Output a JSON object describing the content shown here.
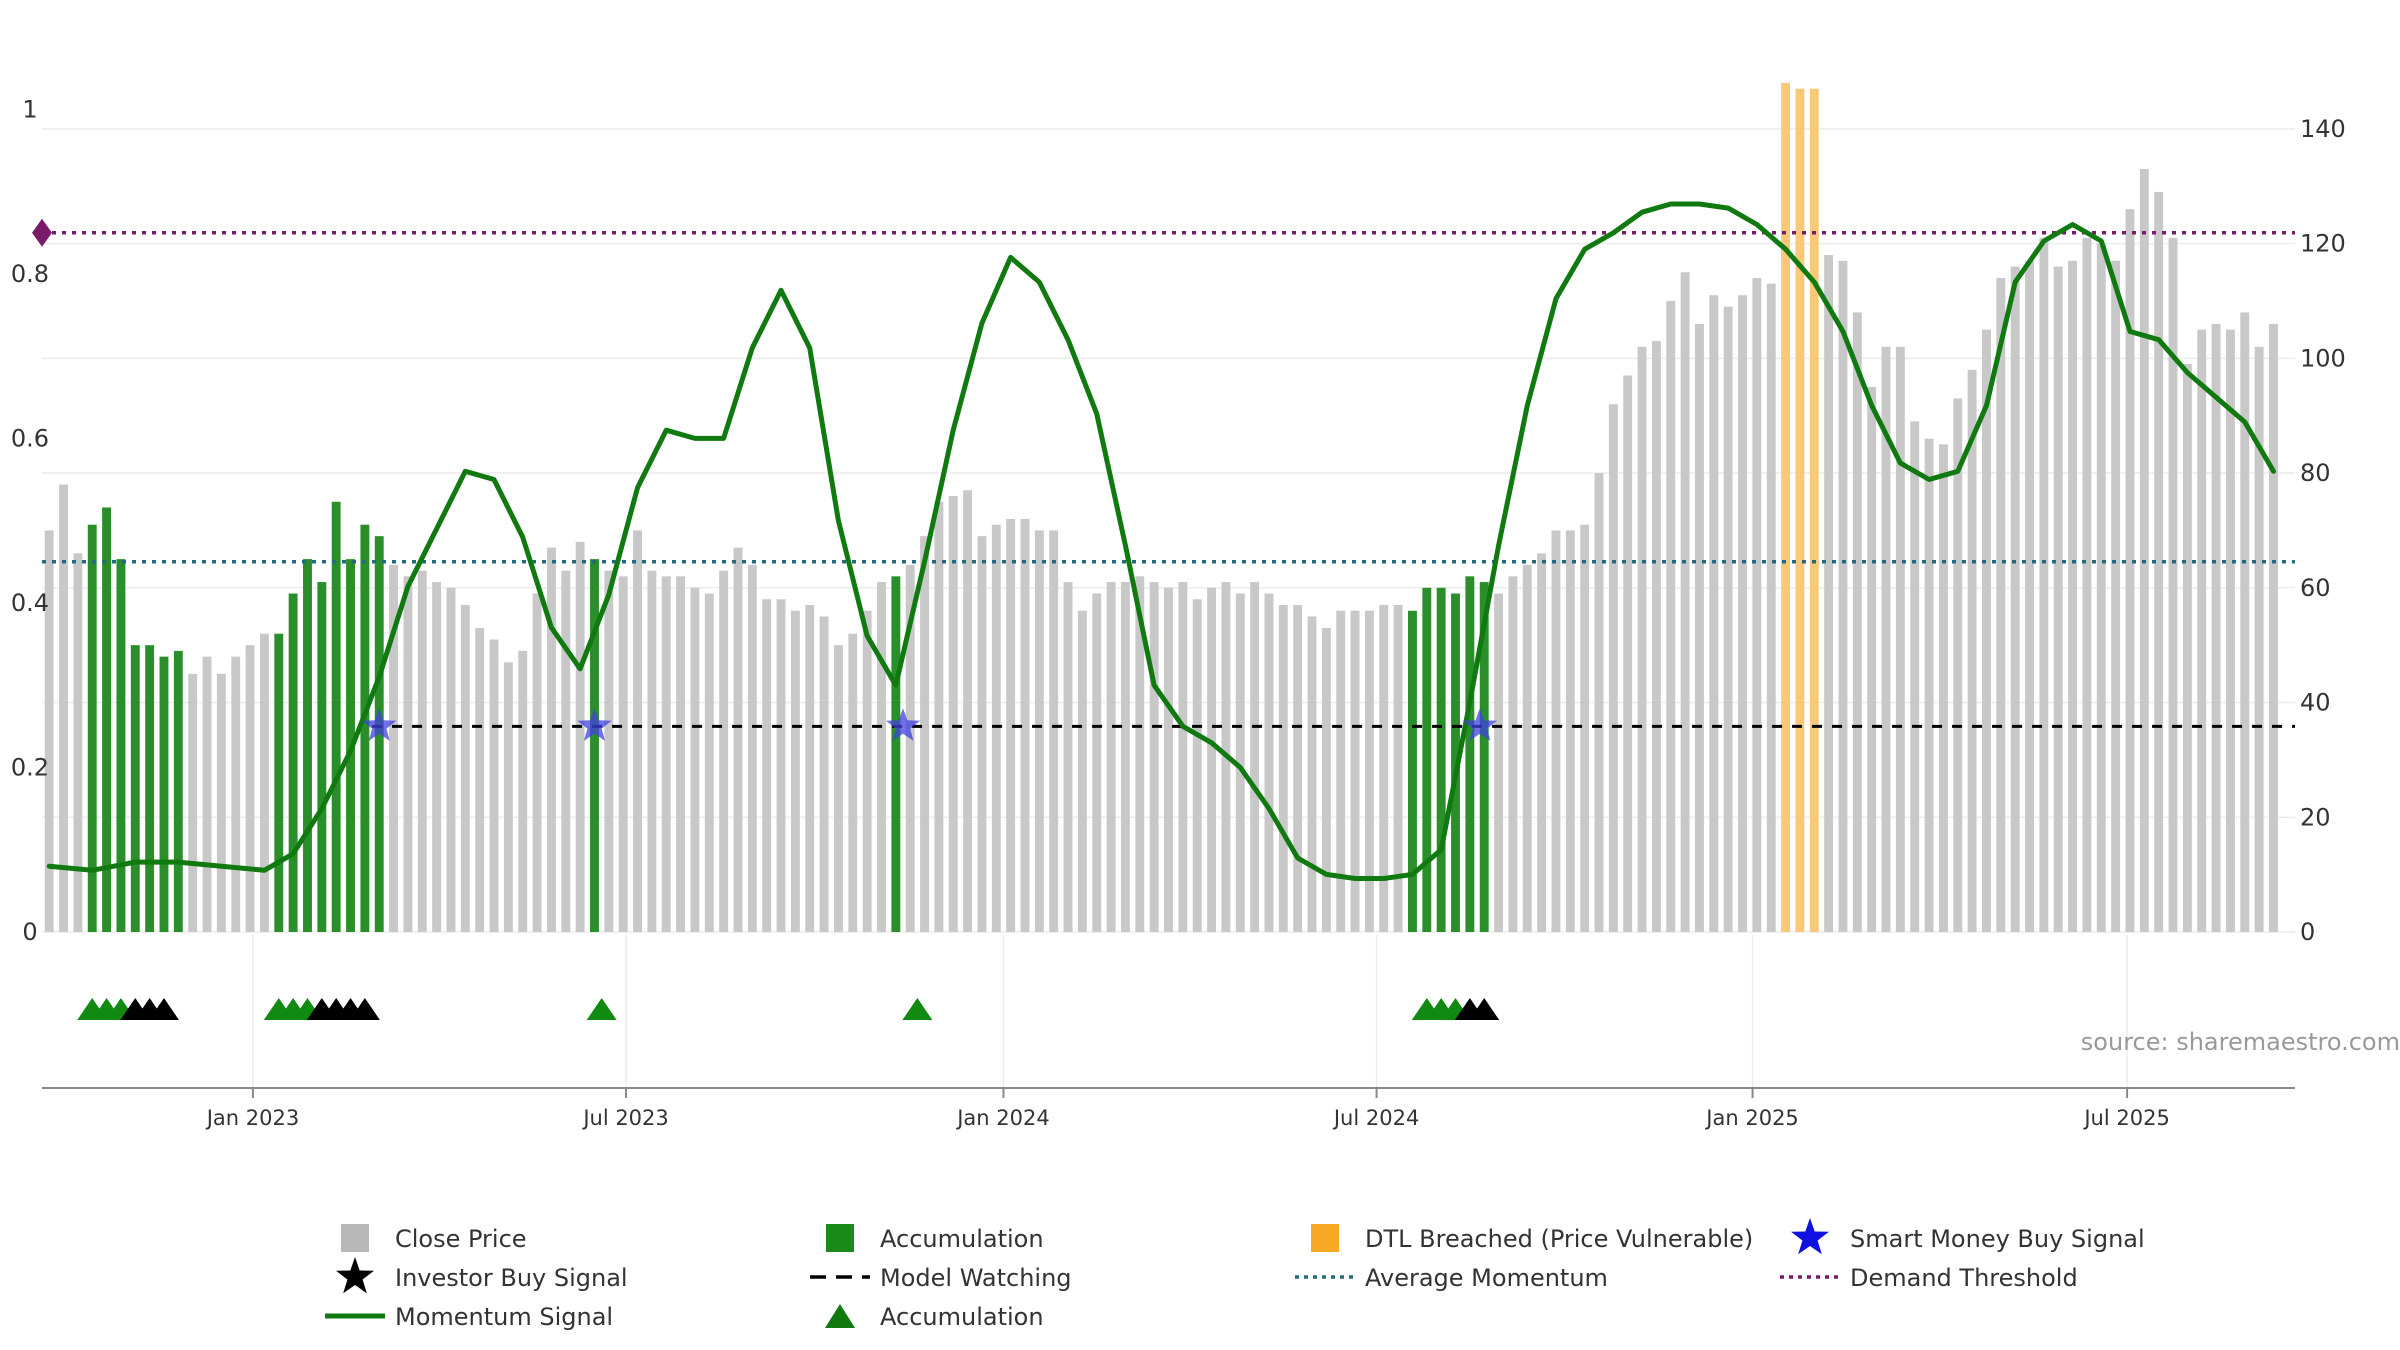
{
  "chart_data": {
    "type": "bar",
    "source": "source: sharemaestro.com",
    "left_axis": {
      "ticks": [
        0,
        0.2,
        0.4,
        0.6,
        0.8,
        1
      ],
      "labels": [
        "0",
        "0.2",
        "0.4",
        "0.6",
        "0.8",
        "1"
      ],
      "range": [
        0,
        1.06
      ]
    },
    "right_axis": {
      "ticks": [
        0,
        20,
        40,
        60,
        80,
        100,
        120,
        140
      ],
      "labels": [
        "0",
        "20",
        "40",
        "60",
        "80",
        "100",
        "120",
        "140"
      ],
      "range": [
        0,
        152
      ]
    },
    "x_axis": {
      "range": [
        0,
        157
      ],
      "ticks": [
        14.7,
        40.7,
        67,
        93,
        119.2,
        145.3
      ],
      "labels": [
        "Jan 2023",
        "Jul 2023",
        "Jan 2024",
        "Jul 2024",
        "Jan 2025",
        "Jul 2025"
      ]
    },
    "close_price_series": [
      {
        "t": 0,
        "v": 70,
        "c": "gray"
      },
      {
        "t": 1,
        "v": 78,
        "c": "gray"
      },
      {
        "t": 2,
        "v": 66,
        "c": "gray"
      },
      {
        "t": 3,
        "v": 71,
        "c": "green"
      },
      {
        "t": 4,
        "v": 74,
        "c": "green"
      },
      {
        "t": 5,
        "v": 65,
        "c": "green"
      },
      {
        "t": 6,
        "v": 50,
        "c": "green"
      },
      {
        "t": 7,
        "v": 50,
        "c": "green"
      },
      {
        "t": 8,
        "v": 48,
        "c": "green"
      },
      {
        "t": 9,
        "v": 49,
        "c": "green"
      },
      {
        "t": 10,
        "v": 45,
        "c": "gray"
      },
      {
        "t": 11,
        "v": 48,
        "c": "gray"
      },
      {
        "t": 12,
        "v": 45,
        "c": "gray"
      },
      {
        "t": 13,
        "v": 48,
        "c": "gray"
      },
      {
        "t": 14,
        "v": 50,
        "c": "gray"
      },
      {
        "t": 15,
        "v": 52,
        "c": "gray"
      },
      {
        "t": 16,
        "v": 52,
        "c": "green"
      },
      {
        "t": 17,
        "v": 59,
        "c": "green"
      },
      {
        "t": 18,
        "v": 65,
        "c": "green"
      },
      {
        "t": 19,
        "v": 61,
        "c": "green"
      },
      {
        "t": 20,
        "v": 75,
        "c": "green"
      },
      {
        "t": 21,
        "v": 65,
        "c": "green"
      },
      {
        "t": 22,
        "v": 71,
        "c": "green"
      },
      {
        "t": 23,
        "v": 69,
        "c": "green"
      },
      {
        "t": 24,
        "v": 64,
        "c": "gray"
      },
      {
        "t": 25,
        "v": 62,
        "c": "gray"
      },
      {
        "t": 26,
        "v": 63,
        "c": "gray"
      },
      {
        "t": 27,
        "v": 61,
        "c": "gray"
      },
      {
        "t": 28,
        "v": 60,
        "c": "gray"
      },
      {
        "t": 29,
        "v": 57,
        "c": "gray"
      },
      {
        "t": 30,
        "v": 53,
        "c": "gray"
      },
      {
        "t": 31,
        "v": 51,
        "c": "gray"
      },
      {
        "t": 32,
        "v": 47,
        "c": "gray"
      },
      {
        "t": 33,
        "v": 49,
        "c": "gray"
      },
      {
        "t": 34,
        "v": 59,
        "c": "gray"
      },
      {
        "t": 35,
        "v": 67,
        "c": "gray"
      },
      {
        "t": 36,
        "v": 63,
        "c": "gray"
      },
      {
        "t": 37,
        "v": 68,
        "c": "gray"
      },
      {
        "t": 38,
        "v": 65,
        "c": "green"
      },
      {
        "t": 39,
        "v": 63,
        "c": "gray"
      },
      {
        "t": 40,
        "v": 62,
        "c": "gray"
      },
      {
        "t": 41,
        "v": 70,
        "c": "gray"
      },
      {
        "t": 42,
        "v": 63,
        "c": "gray"
      },
      {
        "t": 43,
        "v": 62,
        "c": "gray"
      },
      {
        "t": 44,
        "v": 62,
        "c": "gray"
      },
      {
        "t": 45,
        "v": 60,
        "c": "gray"
      },
      {
        "t": 46,
        "v": 59,
        "c": "gray"
      },
      {
        "t": 47,
        "v": 63,
        "c": "gray"
      },
      {
        "t": 48,
        "v": 67,
        "c": "gray"
      },
      {
        "t": 49,
        "v": 64,
        "c": "gray"
      },
      {
        "t": 50,
        "v": 58,
        "c": "gray"
      },
      {
        "t": 51,
        "v": 58,
        "c": "gray"
      },
      {
        "t": 52,
        "v": 56,
        "c": "gray"
      },
      {
        "t": 53,
        "v": 57,
        "c": "gray"
      },
      {
        "t": 54,
        "v": 55,
        "c": "gray"
      },
      {
        "t": 55,
        "v": 50,
        "c": "gray"
      },
      {
        "t": 56,
        "v": 52,
        "c": "gray"
      },
      {
        "t": 57,
        "v": 56,
        "c": "gray"
      },
      {
        "t": 58,
        "v": 61,
        "c": "gray"
      },
      {
        "t": 59,
        "v": 62,
        "c": "green"
      },
      {
        "t": 60,
        "v": 64,
        "c": "gray"
      },
      {
        "t": 61,
        "v": 69,
        "c": "gray"
      },
      {
        "t": 62,
        "v": 75,
        "c": "gray"
      },
      {
        "t": 63,
        "v": 76,
        "c": "gray"
      },
      {
        "t": 64,
        "v": 77,
        "c": "gray"
      },
      {
        "t": 65,
        "v": 69,
        "c": "gray"
      },
      {
        "t": 66,
        "v": 71,
        "c": "gray"
      },
      {
        "t": 67,
        "v": 72,
        "c": "gray"
      },
      {
        "t": 68,
        "v": 72,
        "c": "gray"
      },
      {
        "t": 69,
        "v": 70,
        "c": "gray"
      },
      {
        "t": 70,
        "v": 70,
        "c": "gray"
      },
      {
        "t": 71,
        "v": 61,
        "c": "gray"
      },
      {
        "t": 72,
        "v": 56,
        "c": "gray"
      },
      {
        "t": 73,
        "v": 59,
        "c": "gray"
      },
      {
        "t": 74,
        "v": 61,
        "c": "gray"
      },
      {
        "t": 75,
        "v": 61,
        "c": "gray"
      },
      {
        "t": 76,
        "v": 62,
        "c": "gray"
      },
      {
        "t": 77,
        "v": 61,
        "c": "gray"
      },
      {
        "t": 78,
        "v": 60,
        "c": "gray"
      },
      {
        "t": 79,
        "v": 61,
        "c": "gray"
      },
      {
        "t": 80,
        "v": 58,
        "c": "gray"
      },
      {
        "t": 81,
        "v": 60,
        "c": "gray"
      },
      {
        "t": 82,
        "v": 61,
        "c": "gray"
      },
      {
        "t": 83,
        "v": 59,
        "c": "gray"
      },
      {
        "t": 84,
        "v": 61,
        "c": "gray"
      },
      {
        "t": 85,
        "v": 59,
        "c": "gray"
      },
      {
        "t": 86,
        "v": 57,
        "c": "gray"
      },
      {
        "t": 87,
        "v": 57,
        "c": "gray"
      },
      {
        "t": 88,
        "v": 55,
        "c": "gray"
      },
      {
        "t": 89,
        "v": 53,
        "c": "gray"
      },
      {
        "t": 90,
        "v": 56,
        "c": "gray"
      },
      {
        "t": 91,
        "v": 56,
        "c": "gray"
      },
      {
        "t": 92,
        "v": 56,
        "c": "gray"
      },
      {
        "t": 93,
        "v": 57,
        "c": "gray"
      },
      {
        "t": 94,
        "v": 57,
        "c": "gray"
      },
      {
        "t": 95,
        "v": 56,
        "c": "green"
      },
      {
        "t": 96,
        "v": 60,
        "c": "green"
      },
      {
        "t": 97,
        "v": 60,
        "c": "green"
      },
      {
        "t": 98,
        "v": 59,
        "c": "green"
      },
      {
        "t": 99,
        "v": 62,
        "c": "green"
      },
      {
        "t": 100,
        "v": 61,
        "c": "green"
      },
      {
        "t": 101,
        "v": 59,
        "c": "gray"
      },
      {
        "t": 102,
        "v": 62,
        "c": "gray"
      },
      {
        "t": 103,
        "v": 64,
        "c": "gray"
      },
      {
        "t": 104,
        "v": 66,
        "c": "gray"
      },
      {
        "t": 105,
        "v": 70,
        "c": "gray"
      },
      {
        "t": 106,
        "v": 70,
        "c": "gray"
      },
      {
        "t": 107,
        "v": 71,
        "c": "gray"
      },
      {
        "t": 108,
        "v": 80,
        "c": "gray"
      },
      {
        "t": 109,
        "v": 92,
        "c": "gray"
      },
      {
        "t": 110,
        "v": 97,
        "c": "gray"
      },
      {
        "t": 111,
        "v": 102,
        "c": "gray"
      },
      {
        "t": 112,
        "v": 103,
        "c": "gray"
      },
      {
        "t": 113,
        "v": 110,
        "c": "gray"
      },
      {
        "t": 114,
        "v": 115,
        "c": "gray"
      },
      {
        "t": 115,
        "v": 106,
        "c": "gray"
      },
      {
        "t": 116,
        "v": 111,
        "c": "gray"
      },
      {
        "t": 117,
        "v": 109,
        "c": "gray"
      },
      {
        "t": 118,
        "v": 111,
        "c": "gray"
      },
      {
        "t": 119,
        "v": 114,
        "c": "gray"
      },
      {
        "t": 120,
        "v": 113,
        "c": "gray"
      },
      {
        "t": 121,
        "v": 148,
        "c": "orange"
      },
      {
        "t": 122,
        "v": 147,
        "c": "orange"
      },
      {
        "t": 123,
        "v": 147,
        "c": "orange"
      },
      {
        "t": 124,
        "v": 118,
        "c": "gray"
      },
      {
        "t": 125,
        "v": 117,
        "c": "gray"
      },
      {
        "t": 126,
        "v": 108,
        "c": "gray"
      },
      {
        "t": 127,
        "v": 95,
        "c": "gray"
      },
      {
        "t": 128,
        "v": 102,
        "c": "gray"
      },
      {
        "t": 129,
        "v": 102,
        "c": "gray"
      },
      {
        "t": 130,
        "v": 89,
        "c": "gray"
      },
      {
        "t": 131,
        "v": 86,
        "c": "gray"
      },
      {
        "t": 132,
        "v": 85,
        "c": "gray"
      },
      {
        "t": 133,
        "v": 93,
        "c": "gray"
      },
      {
        "t": 134,
        "v": 98,
        "c": "gray"
      },
      {
        "t": 135,
        "v": 105,
        "c": "gray"
      },
      {
        "t": 136,
        "v": 114,
        "c": "gray"
      },
      {
        "t": 137,
        "v": 116,
        "c": "gray"
      },
      {
        "t": 138,
        "v": 117,
        "c": "gray"
      },
      {
        "t": 139,
        "v": 121,
        "c": "gray"
      },
      {
        "t": 140,
        "v": 116,
        "c": "gray"
      },
      {
        "t": 141,
        "v": 117,
        "c": "gray"
      },
      {
        "t": 142,
        "v": 121,
        "c": "gray"
      },
      {
        "t": 143,
        "v": 120,
        "c": "gray"
      },
      {
        "t": 144,
        "v": 117,
        "c": "gray"
      },
      {
        "t": 145,
        "v": 126,
        "c": "gray"
      },
      {
        "t": 146,
        "v": 133,
        "c": "gray"
      },
      {
        "t": 147,
        "v": 129,
        "c": "gray"
      },
      {
        "t": 148,
        "v": 121,
        "c": "gray"
      },
      {
        "t": 149,
        "v": 99,
        "c": "gray"
      },
      {
        "t": 150,
        "v": 105,
        "c": "gray"
      },
      {
        "t": 151,
        "v": 106,
        "c": "gray"
      },
      {
        "t": 152,
        "v": 105,
        "c": "gray"
      },
      {
        "t": 153,
        "v": 108,
        "c": "gray"
      },
      {
        "t": 154,
        "v": 102,
        "c": "gray"
      },
      {
        "t": 155,
        "v": 106,
        "c": "gray"
      }
    ],
    "momentum_series": {
      "x": [
        0,
        3,
        6,
        9,
        12,
        15,
        17,
        19,
        21,
        23,
        25,
        27,
        29,
        31,
        33,
        35,
        37,
        39,
        41,
        43,
        45,
        47,
        49,
        51,
        53,
        55,
        57,
        59,
        61,
        63,
        65,
        67,
        69,
        71,
        73,
        75,
        77,
        79,
        81,
        83,
        85,
        87,
        89,
        91,
        93,
        95,
        97,
        99,
        101,
        103,
        105,
        107,
        109,
        111,
        113,
        115,
        117,
        119,
        121,
        123,
        125,
        127,
        129,
        131,
        133,
        135,
        137,
        139,
        141,
        143,
        145,
        147,
        149,
        151,
        153,
        155
      ],
      "y": [
        0.08,
        0.075,
        0.085,
        0.085,
        0.08,
        0.075,
        0.095,
        0.15,
        0.22,
        0.31,
        0.42,
        0.49,
        0.56,
        0.55,
        0.48,
        0.37,
        0.32,
        0.41,
        0.54,
        0.61,
        0.6,
        0.6,
        0.71,
        0.78,
        0.71,
        0.5,
        0.36,
        0.3,
        0.45,
        0.61,
        0.74,
        0.82,
        0.79,
        0.72,
        0.63,
        0.47,
        0.3,
        0.25,
        0.23,
        0.2,
        0.15,
        0.09,
        0.07,
        0.065,
        0.065,
        0.07,
        0.1,
        0.28,
        0.47,
        0.64,
        0.77,
        0.83,
        0.85,
        0.875,
        0.885,
        0.885,
        0.88,
        0.86,
        0.83,
        0.79,
        0.73,
        0.64,
        0.57,
        0.55,
        0.56,
        0.64,
        0.79,
        0.84,
        0.86,
        0.84,
        0.73,
        0.72,
        0.68,
        0.65,
        0.62,
        0.56
      ]
    },
    "reference_lines": [
      {
        "name": "Average Momentum",
        "value": 0.45,
        "color": "#236a7e"
      },
      {
        "name": "Demand Threshold",
        "value": 0.85,
        "color": "#7a1a6a"
      },
      {
        "name": "Model Watching",
        "value": 0.25,
        "start_x": 23,
        "color": "#000000"
      }
    ],
    "smart_money_buy_signals_x": [
      23.5,
      38.5,
      60,
      100.2
    ],
    "accumulation_triangles": [
      {
        "x": 3,
        "color": "green"
      },
      {
        "x": 4,
        "color": "green"
      },
      {
        "x": 5,
        "color": "green"
      },
      {
        "x": 6,
        "color": "black"
      },
      {
        "x": 7,
        "color": "black"
      },
      {
        "x": 8,
        "color": "black"
      },
      {
        "x": 16,
        "color": "green"
      },
      {
        "x": 17,
        "color": "green"
      },
      {
        "x": 18,
        "color": "green"
      },
      {
        "x": 19,
        "color": "black"
      },
      {
        "x": 20,
        "color": "black"
      },
      {
        "x": 21,
        "color": "black"
      },
      {
        "x": 22,
        "color": "black"
      },
      {
        "x": 38.5,
        "color": "green"
      },
      {
        "x": 60.5,
        "color": "green"
      },
      {
        "x": 96,
        "color": "green"
      },
      {
        "x": 97,
        "color": "green"
      },
      {
        "x": 98,
        "color": "green"
      },
      {
        "x": 99,
        "color": "black"
      },
      {
        "x": 100,
        "color": "black"
      }
    ],
    "legend": [
      {
        "label": "Close Price",
        "type": "square",
        "color": "#b8b8b8"
      },
      {
        "label": "Accumulation",
        "type": "square",
        "color": "#1a8a1a"
      },
      {
        "label": "DTL Breached (Price Vulnerable)",
        "type": "square",
        "color": "#f7a825"
      },
      {
        "label": "Smart Money Buy Signal",
        "type": "star",
        "color": "#1010e0"
      },
      {
        "label": "Investor Buy Signal",
        "type": "star",
        "color": "#000000"
      },
      {
        "label": "Model Watching",
        "type": "dash",
        "color": "#000000"
      },
      {
        "label": "Average Momentum",
        "type": "dotted",
        "color": "#236a7e"
      },
      {
        "label": "Demand Threshold",
        "type": "dotted",
        "color": "#7a1a6a"
      },
      {
        "label": "Momentum Signal",
        "type": "line",
        "color": "#107a10"
      },
      {
        "label": "Accumulation",
        "type": "triangle",
        "color": "#107a10"
      }
    ]
  }
}
